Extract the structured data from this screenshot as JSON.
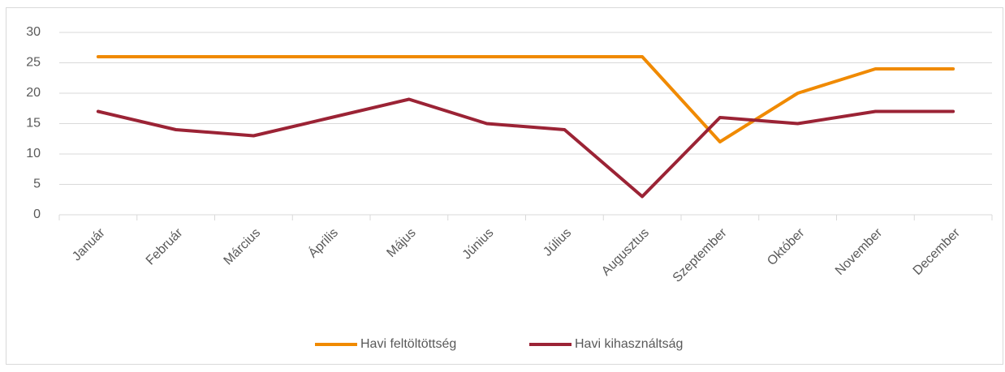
{
  "chart_data": {
    "type": "line",
    "categories": [
      "Január",
      "Február",
      "Március",
      "Április",
      "Május",
      "Június",
      "Július",
      "Augusztus",
      "Szeptember",
      "Október",
      "November",
      "December"
    ],
    "series": [
      {
        "name": "Havi feltöltöttség",
        "color": "#f08a00",
        "values": [
          26,
          26,
          26,
          26,
          26,
          26,
          26,
          26,
          12,
          20,
          24,
          24
        ]
      },
      {
        "name": "Havi kihasználtság",
        "color": "#9b2335",
        "values": [
          17,
          14,
          13,
          16,
          19,
          15,
          14,
          3,
          16,
          15,
          17,
          17
        ]
      }
    ],
    "ylim": [
      0,
      30
    ],
    "yticks": [
      0,
      5,
      10,
      15,
      20,
      25,
      30
    ],
    "grid": true,
    "legend": "bottom"
  }
}
